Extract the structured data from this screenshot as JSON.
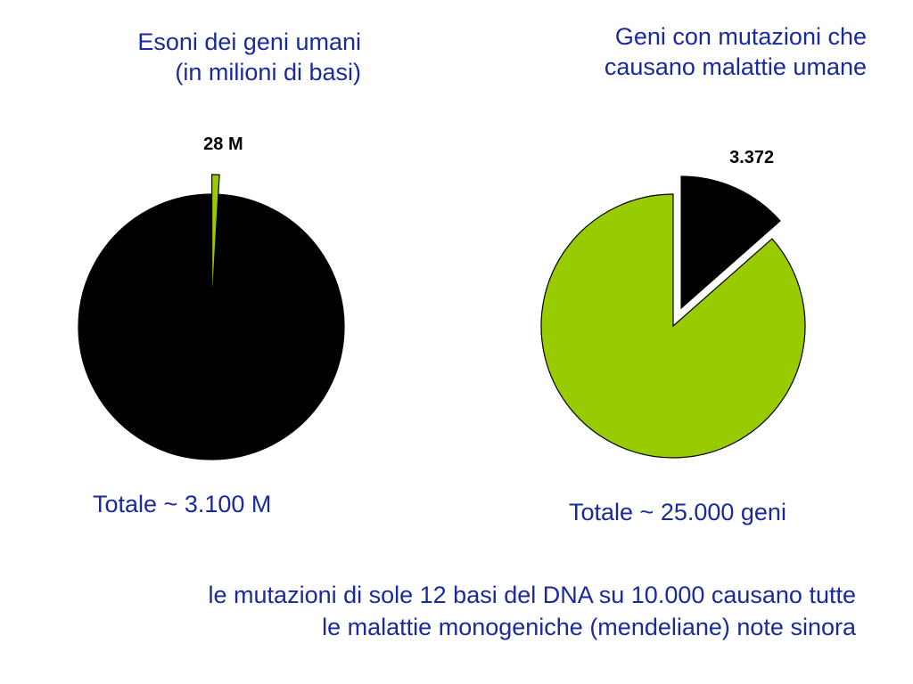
{
  "chart_data": [
    {
      "type": "pie",
      "title": [
        "Esoni dei geni umani",
        "(in milioni di basi)"
      ],
      "slices": [
        {
          "value": 28,
          "label": "28 M",
          "color": "#99cc00",
          "exploded": true
        },
        {
          "value": 3072,
          "label": "",
          "color": "#000000",
          "exploded": false
        }
      ],
      "total_label": "Totale ~ 3.100 M"
    },
    {
      "type": "pie",
      "title": [
        "Geni con mutazioni che",
        "causano malattie umane"
      ],
      "slices": [
        {
          "value": 3372,
          "label": "3.372",
          "color": "#000000",
          "exploded": true
        },
        {
          "value": 21628,
          "label": "",
          "color": "#99cc00",
          "exploded": false
        }
      ],
      "total_label": "Totale ~ 25.000 geni"
    }
  ],
  "footnote": [
    "le mutazioni di sole 12 basi del DNA su 10.000 causano tutte",
    "le malattie monogeniche (mendeliane) note sinora"
  ]
}
